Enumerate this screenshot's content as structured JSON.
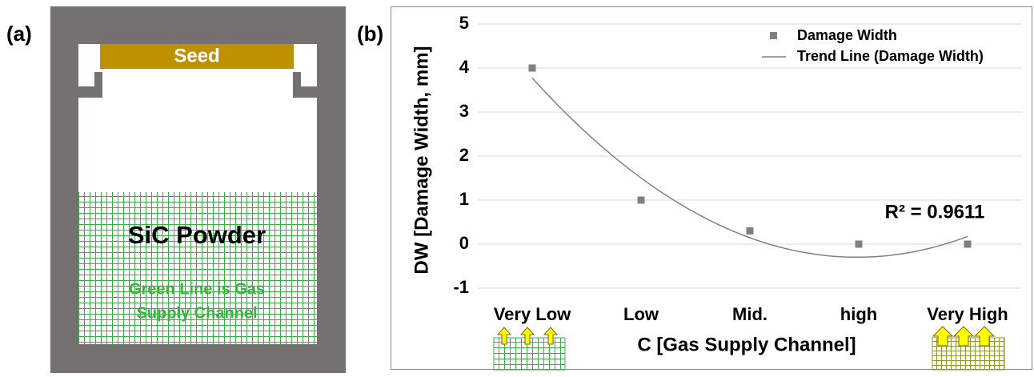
{
  "panel_labels": [
    "(a)",
    "(b)"
  ],
  "diagram": {
    "seed": "Seed",
    "powder": "SiC Powder",
    "channel_note": [
      "Green Line is Gas",
      "Supply Channel"
    ]
  },
  "chart_data": {
    "type": "scatter",
    "y_label": "DW [Damage Width, mm]",
    "x_label": "C [Gas Supply Channel]",
    "categories": [
      "Very Low",
      "Low",
      "Mid.",
      "high",
      "Very High"
    ],
    "series": [
      {
        "name": "Damage Width",
        "color": "#808080",
        "values": [
          4,
          1,
          0.3,
          0,
          0
        ]
      }
    ],
    "trendline": {
      "name": "Trend Line (Damage Width)",
      "color": "#808080",
      "order": 2,
      "annotation": "R² = 0.9611"
    },
    "ylim": [
      -1,
      5
    ],
    "yticks": [
      -1,
      0,
      1,
      2,
      3,
      4,
      5
    ],
    "grid": true,
    "legend": "upper right"
  }
}
